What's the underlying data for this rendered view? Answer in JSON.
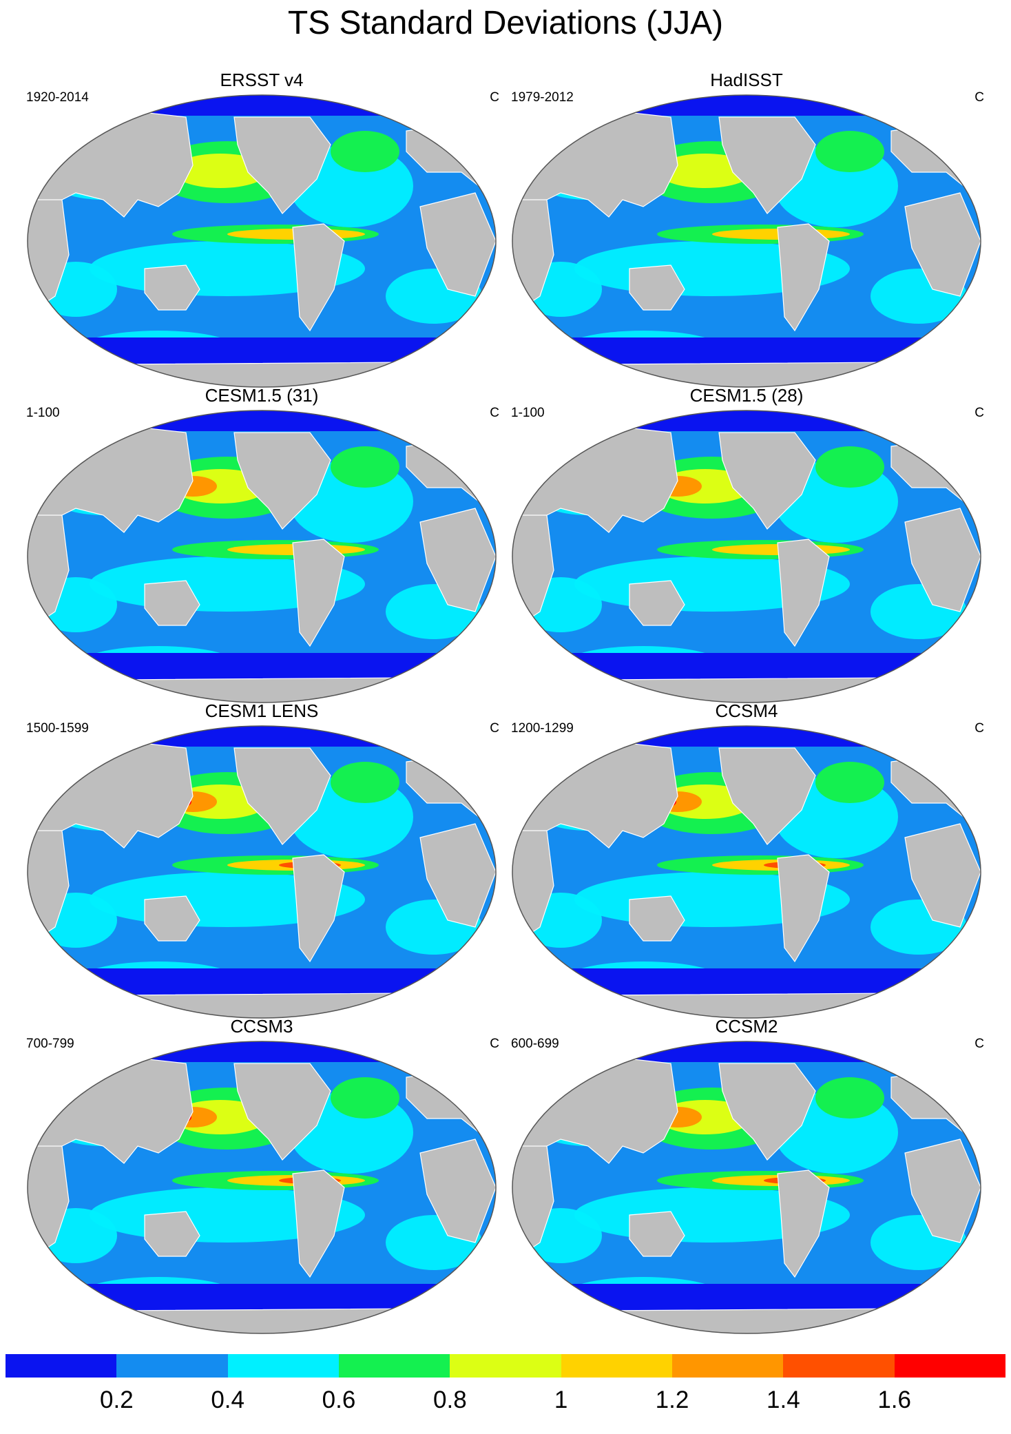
{
  "figure": {
    "title": "TS Standard Deviations (JJA)"
  },
  "panels": [
    {
      "title": "ERSST v4",
      "period": "1920-2014",
      "unit": "C"
    },
    {
      "title": "HadISST",
      "period": "1979-2012",
      "unit": "C"
    },
    {
      "title": "CESM1.5 (31)",
      "period": "1-100",
      "unit": "C"
    },
    {
      "title": "CESM1.5 (28)",
      "period": "1-100",
      "unit": "C"
    },
    {
      "title": "CESM1 LENS",
      "period": "1500-1599",
      "unit": "C"
    },
    {
      "title": "CCSM4",
      "period": "1200-1299",
      "unit": "C"
    },
    {
      "title": "CCSM3",
      "period": "700-799",
      "unit": "C"
    },
    {
      "title": "CCSM2",
      "period": "600-699",
      "unit": "C"
    }
  ],
  "colorbar": {
    "labels": [
      "0.2",
      "0.4",
      "0.6",
      "0.8",
      "1",
      "1.2",
      "1.4",
      "1.6"
    ],
    "colors": [
      "#0a14f0",
      "#148cf0",
      "#00f0ff",
      "#14f050",
      "#dcff14",
      "#ffd200",
      "#ff9600",
      "#ff5000",
      "#ff0000"
    ]
  },
  "map_style": {
    "land": "#bebebe",
    "ocean_base": "#148cf0",
    "outline": "#555555"
  }
}
